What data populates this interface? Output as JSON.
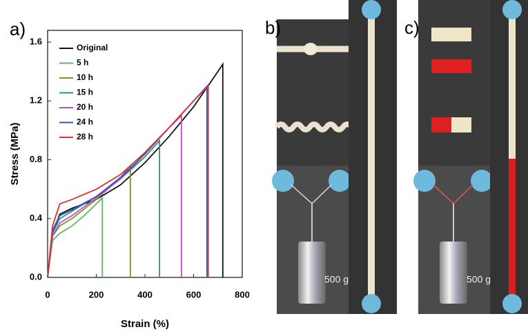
{
  "chart_data": {
    "type": "line",
    "panel_label": "a)",
    "xlabel": "Strain (%)",
    "ylabel": "Stress (MPa)",
    "xlim": [
      0,
      800
    ],
    "ylim": [
      0,
      1.68
    ],
    "xticks": [
      0,
      200,
      400,
      600,
      800
    ],
    "yticks": [
      {
        "value": 0,
        "label": "0.0"
      },
      0.4,
      0.8,
      1.2,
      1.6
    ],
    "legend": "upper left",
    "series": [
      {
        "name": "Original",
        "color": "#111111",
        "x": [
          0,
          20,
          50,
          100,
          200,
          300,
          400,
          500,
          600,
          700,
          720,
          720
        ],
        "values": [
          0,
          0.3,
          0.43,
          0.47,
          0.53,
          0.63,
          0.78,
          0.96,
          1.16,
          1.4,
          1.45,
          0
        ]
      },
      {
        "name": "5 h",
        "color": "#5cb85c",
        "x": [
          0,
          20,
          50,
          100,
          150,
          200,
          225,
          225
        ],
        "values": [
          0,
          0.25,
          0.3,
          0.35,
          0.42,
          0.5,
          0.54,
          0
        ]
      },
      {
        "name": "10 h",
        "color": "#8b8b2b",
        "x": [
          0,
          20,
          50,
          100,
          200,
          300,
          340,
          340
        ],
        "values": [
          0,
          0.28,
          0.35,
          0.4,
          0.53,
          0.68,
          0.76,
          0
        ]
      },
      {
        "name": "15 h",
        "color": "#2a8c8c",
        "x": [
          0,
          20,
          50,
          100,
          200,
          300,
          400,
          460,
          460
        ],
        "values": [
          0,
          0.3,
          0.4,
          0.45,
          0.55,
          0.67,
          0.82,
          0.93,
          0
        ]
      },
      {
        "name": "20 h",
        "color": "#c050c0",
        "x": [
          0,
          20,
          50,
          100,
          200,
          300,
          400,
          500,
          550,
          550
        ],
        "values": [
          0,
          0.28,
          0.37,
          0.42,
          0.54,
          0.67,
          0.84,
          1.02,
          1.1,
          0
        ]
      },
      {
        "name": "24 h",
        "color": "#3050c0",
        "x": [
          0,
          20,
          50,
          100,
          200,
          300,
          400,
          500,
          600,
          655,
          655
        ],
        "values": [
          0,
          0.32,
          0.42,
          0.46,
          0.55,
          0.68,
          0.84,
          1.02,
          1.2,
          1.3,
          0
        ]
      },
      {
        "name": "28 h",
        "color": "#e03030",
        "x": [
          0,
          20,
          50,
          100,
          200,
          300,
          400,
          500,
          600,
          660,
          660
        ],
        "values": [
          0,
          0.35,
          0.5,
          0.53,
          0.6,
          0.7,
          0.85,
          1.02,
          1.2,
          1.3,
          0
        ]
      }
    ]
  },
  "panels": [
    {
      "label": "b)",
      "weight_label": "500 g"
    },
    {
      "label": "c)",
      "weight_label": "500 g"
    }
  ]
}
